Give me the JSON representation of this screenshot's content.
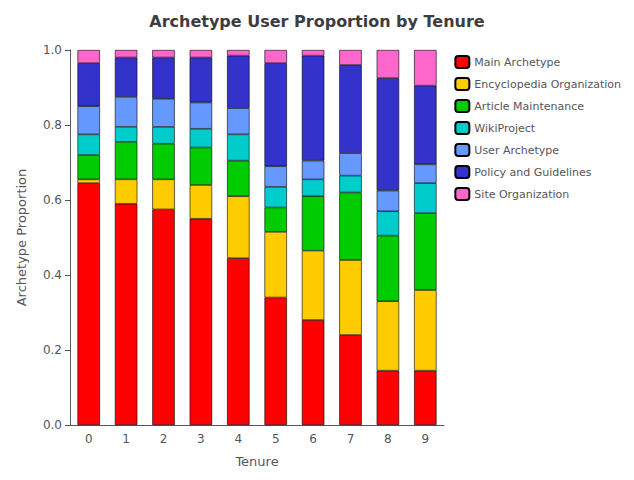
{
  "chart_data": {
    "type": "bar",
    "title": "Archetype User Proportion by Tenure",
    "x_label": "Tenure",
    "y_label": "Archetype Proportion",
    "categories": [
      "0",
      "1",
      "2",
      "3",
      "4",
      "5",
      "6",
      "7",
      "8",
      "9"
    ],
    "series": [
      {
        "name": "Main Archetype",
        "color": "#FF0000",
        "values": [
          0.645,
          0.59,
          0.575,
          0.55,
          0.445,
          0.34,
          0.28,
          0.24,
          0.145,
          0.145
        ]
      },
      {
        "name": "Encyclopedia Organization",
        "color": "#FFCC00",
        "values": [
          0.01,
          0.065,
          0.08,
          0.09,
          0.165,
          0.175,
          0.185,
          0.2,
          0.185,
          0.215
        ]
      },
      {
        "name": "Article Maintenance",
        "color": "#00CC00",
        "values": [
          0.065,
          0.1,
          0.095,
          0.1,
          0.095,
          0.065,
          0.145,
          0.18,
          0.175,
          0.205
        ]
      },
      {
        "name": "WikiProject",
        "color": "#00CCCC",
        "values": [
          0.055,
          0.04,
          0.045,
          0.05,
          0.07,
          0.055,
          0.045,
          0.045,
          0.065,
          0.08
        ]
      },
      {
        "name": "User Archetype",
        "color": "#6699FF",
        "values": [
          0.075,
          0.08,
          0.075,
          0.07,
          0.07,
          0.055,
          0.05,
          0.06,
          0.055,
          0.05
        ]
      },
      {
        "name": "Policy and Guidelines",
        "color": "#3333CC",
        "values": [
          0.115,
          0.105,
          0.11,
          0.12,
          0.14,
          0.275,
          0.28,
          0.235,
          0.3,
          0.21
        ]
      },
      {
        "name": "Site Organization",
        "color": "#FF66CC",
        "values": [
          0.035,
          0.02,
          0.02,
          0.02,
          0.015,
          0.035,
          0.015,
          0.04,
          0.075,
          0.095
        ]
      }
    ],
    "stacked": true,
    "ylim": [
      0,
      1
    ],
    "yticks": [
      {
        "value": 0,
        "label": "0.0"
      },
      0.2,
      0.4,
      0.6,
      0.8,
      {
        "value": 1,
        "label": "1.0"
      }
    ],
    "grid": false,
    "legend": "upper right"
  }
}
